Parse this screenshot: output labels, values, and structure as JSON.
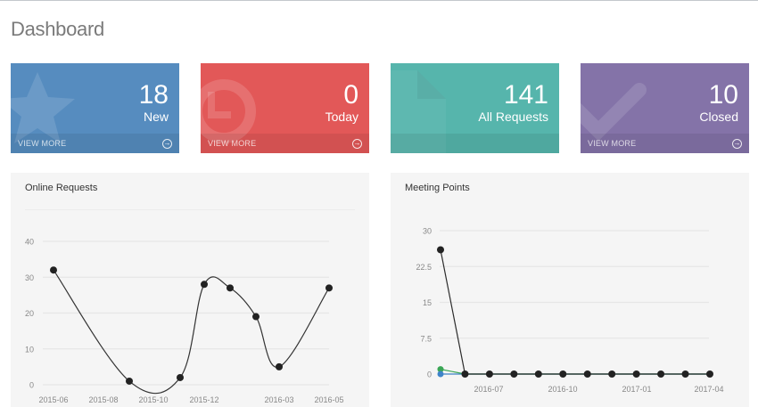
{
  "page": {
    "title": "Dashboard"
  },
  "cards": [
    {
      "value": "18",
      "label": "New",
      "link": "VIEW MORE",
      "color": "#568cbf",
      "icon": "star-icon"
    },
    {
      "value": "0",
      "label": "Today",
      "link": "VIEW MORE",
      "color": "#e25858",
      "icon": "clock-icon"
    },
    {
      "value": "141",
      "label": "All Requests",
      "link": "",
      "color": "#56b5ac",
      "icon": "file-icon"
    },
    {
      "value": "10",
      "label": "Closed",
      "link": "VIEW MORE",
      "color": "#8473a8",
      "icon": "check-icon"
    }
  ],
  "panels": {
    "online_requests": {
      "title": "Online Requests"
    },
    "meeting_points": {
      "title": "Meeting Points"
    }
  },
  "chart_data": [
    {
      "type": "line",
      "title": "Online Requests",
      "xlabel": "",
      "ylabel": "",
      "x_tick_labels": [
        "2015-06",
        "2015-08",
        "2015-10",
        "2015-12",
        "2016-03",
        "2016-05"
      ],
      "y_ticks": [
        0,
        10,
        20,
        30,
        40
      ],
      "ylim": [
        0,
        40
      ],
      "grid": true,
      "x": [
        "2015-06",
        "2015-09",
        "2015-11",
        "2015-12",
        "2016-01",
        "2016-02",
        "2016-03",
        "2016-05"
      ],
      "values": [
        32,
        1,
        2,
        28,
        27,
        19,
        5,
        27
      ],
      "series_color": "#333333"
    },
    {
      "type": "line",
      "title": "Meeting Points",
      "xlabel": "",
      "ylabel": "",
      "x_tick_labels": [
        "2016-07",
        "2016-10",
        "2017-01",
        "2017-04"
      ],
      "y_ticks": [
        0,
        7.5,
        15,
        22.5,
        30
      ],
      "ylim": [
        0,
        30
      ],
      "grid": true,
      "x": [
        "2016-05",
        "2016-06",
        "2016-07",
        "2016-08",
        "2016-09",
        "2016-10",
        "2016-11",
        "2016-12",
        "2017-01",
        "2017-02",
        "2017-03",
        "2017-04"
      ],
      "series": [
        {
          "name": "dark",
          "color": "#2b2b2b",
          "values": [
            26,
            0,
            0,
            0,
            0,
            0,
            0,
            0,
            0,
            0,
            0,
            0
          ]
        },
        {
          "name": "green",
          "color": "#3aa655",
          "values": [
            1,
            0,
            0,
            0,
            0,
            0,
            0,
            0,
            0,
            0,
            0,
            0
          ]
        },
        {
          "name": "blue",
          "color": "#3f84c8",
          "values": [
            0,
            0,
            0,
            0,
            0,
            0,
            0,
            0,
            0,
            0,
            0,
            0
          ]
        }
      ]
    }
  ]
}
